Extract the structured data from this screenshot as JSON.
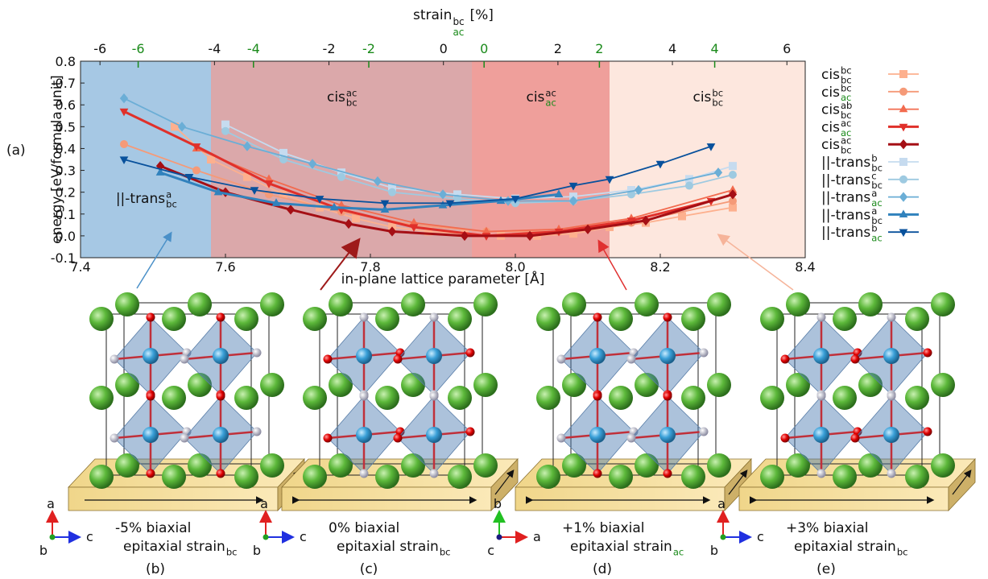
{
  "chart_data": {
    "type": "line",
    "panel_label": "(a)",
    "xlabel": "in-plane lattice parameter [Å]",
    "ylabel": "energy [eV/formula unit]",
    "xlim": [
      7.4,
      8.4
    ],
    "xticks": [
      7.4,
      7.6,
      7.8,
      {
        "value": 8.0,
        "label": "8.0"
      },
      8.2,
      8.4
    ],
    "ylim": [
      -0.1,
      0.8
    ],
    "yticks": [
      -0.1,
      {
        "value": 0,
        "label": "0.0"
      },
      0.1,
      0.2,
      0.3,
      0.4,
      0.5,
      0.6,
      0.7,
      0.8
    ],
    "x2label": "strain",
    "x2label_sub": "bc",
    "x2label_unit": "[%]",
    "x2lim": [
      -6.34,
      6.32
    ],
    "x2ticks": [
      -6,
      -4,
      -2,
      0,
      2,
      4,
      6
    ],
    "x3label_sub": "ac",
    "x3lim": [
      -7.0,
      5.57
    ],
    "x3ticks": [
      -6,
      -4,
      -2,
      0,
      2,
      4
    ],
    "x3color": "#1a8a1a",
    "regions": [
      {
        "x": [
          7.4,
          7.58
        ],
        "color": "#a6c8e4",
        "label": "||-trans",
        "sup": "a",
        "sub": "bc"
      },
      {
        "x": [
          7.58,
          7.94
        ],
        "color": "#dba8aa",
        "label": "cis",
        "sup": "ac",
        "sub": "bc"
      },
      {
        "x": [
          7.94,
          8.13
        ],
        "color": "#ef9f9b",
        "label": "cis",
        "sup": "ac",
        "sub": "ac",
        "sub_color": "#1a8a1a"
      },
      {
        "x": [
          8.13,
          8.4
        ],
        "color": "#fde7de",
        "label": "cis",
        "sup": "bc",
        "sub": "bc"
      }
    ],
    "series": [
      {
        "name": "cis",
        "sup": "bc",
        "sub": "bc",
        "color": "#fdb08e",
        "marker": "square",
        "x": [
          7.53,
          7.58,
          7.63,
          7.68,
          7.73,
          7.78,
          7.83,
          7.88,
          7.93,
          7.98,
          8.03,
          8.08,
          8.13,
          8.18,
          8.23,
          8.3
        ],
        "values": [
          0.5,
          0.35,
          0.27,
          0.19,
          0.13,
          0.08,
          0.04,
          0.02,
          0.01,
          0.0,
          0.0,
          0.01,
          0.04,
          0.06,
          0.09,
          0.13
        ]
      },
      {
        "name": "cis",
        "sup": "bc",
        "sub": "ac",
        "sub_color": "#1a8a1a",
        "color": "#f59a78",
        "marker": "circle",
        "x": [
          7.46,
          7.56,
          7.66,
          7.76,
          7.86,
          7.96,
          8.06,
          8.16,
          8.3
        ],
        "values": [
          0.42,
          0.3,
          0.19,
          0.11,
          0.05,
          0.02,
          0.02,
          0.06,
          0.16
        ]
      },
      {
        "name": "cis",
        "sup": "ab",
        "sub": "bc",
        "color": "#f26b4f",
        "marker": "triangle-up",
        "x": [
          7.56,
          7.66,
          7.76,
          7.86,
          7.96,
          8.06,
          8.16,
          8.3
        ],
        "values": [
          0.4,
          0.26,
          0.14,
          0.06,
          0.02,
          0.03,
          0.08,
          0.21
        ]
      },
      {
        "name": "cis",
        "sup": "ac",
        "sub": "ac",
        "sub_color": "#1a8a1a",
        "color": "#e0302a",
        "marker": "triangle-down",
        "x": [
          7.46,
          7.56,
          7.66,
          7.76,
          7.86,
          7.96,
          8.06,
          8.16,
          8.27
        ],
        "values": [
          0.57,
          0.41,
          0.24,
          0.12,
          0.04,
          0.0,
          0.02,
          0.07,
          0.16
        ]
      },
      {
        "name": "cis",
        "sup": "ac",
        "sub": "bc",
        "color": "#a50f15",
        "marker": "diamond",
        "x": [
          7.51,
          7.6,
          7.69,
          7.77,
          7.83,
          7.93,
          8.02,
          8.1,
          8.18,
          8.3
        ],
        "values": [
          0.32,
          0.2,
          0.12,
          0.055,
          0.02,
          0.0,
          0.0,
          0.03,
          0.07,
          0.19
        ]
      },
      {
        "name": "||-trans",
        "sup": "b",
        "sub": "bc",
        "color": "#c6dbef",
        "marker": "square",
        "x": [
          7.6,
          7.68,
          7.76,
          7.83,
          7.92,
          8.0,
          8.08,
          8.16,
          8.24,
          8.3
        ],
        "values": [
          0.51,
          0.38,
          0.29,
          0.22,
          0.19,
          0.17,
          0.18,
          0.21,
          0.26,
          0.32
        ]
      },
      {
        "name": "||-trans",
        "sup": "c",
        "sub": "bc",
        "color": "#9ecae1",
        "marker": "circle",
        "x": [
          7.6,
          7.68,
          7.76,
          7.83,
          7.92,
          8.0,
          8.08,
          8.16,
          8.24,
          8.3
        ],
        "values": [
          0.48,
          0.35,
          0.27,
          0.2,
          0.17,
          0.15,
          0.16,
          0.19,
          0.23,
          0.28
        ]
      },
      {
        "name": "||-trans",
        "sup": "a",
        "sub": "ac",
        "sub_color": "#1a8a1a",
        "color": "#6baed6",
        "marker": "diamond",
        "x": [
          7.46,
          7.54,
          7.63,
          7.72,
          7.81,
          7.9,
          7.99,
          8.08,
          8.17,
          8.28
        ],
        "values": [
          0.63,
          0.5,
          0.41,
          0.33,
          0.25,
          0.19,
          0.16,
          0.16,
          0.21,
          0.29
        ]
      },
      {
        "name": "||-trans",
        "sup": "a",
        "sub": "bc",
        "color": "#3182bd",
        "marker": "triangle-up",
        "x": [
          7.51,
          7.59,
          7.67,
          7.75,
          7.82,
          7.9,
          7.98,
          8.06
        ],
        "values": [
          0.29,
          0.2,
          0.15,
          0.13,
          0.12,
          0.14,
          0.16,
          0.19
        ]
      },
      {
        "name": "||-trans",
        "sup": "b",
        "sub": "ac",
        "sub_color": "#1a8a1a",
        "color": "#08519c",
        "marker": "triangle-down",
        "x": [
          7.46,
          7.55,
          7.64,
          7.73,
          7.82,
          7.91,
          8.0,
          8.08,
          8.13,
          8.2,
          8.27
        ],
        "values": [
          0.35,
          0.27,
          0.21,
          0.17,
          0.15,
          0.15,
          0.17,
          0.23,
          0.26,
          0.33,
          0.41
        ]
      }
    ]
  },
  "panels": [
    {
      "label": "(b)",
      "line1": "-5% biaxial",
      "line2": "epitaxial strain",
      "sub": "bc",
      "up": "a",
      "dot": "b",
      "right": "c"
    },
    {
      "label": "(c)",
      "line1": "0% biaxial",
      "line2": "epitaxial strain",
      "sub": "bc",
      "up": "a",
      "dot": "b",
      "right": "c"
    },
    {
      "label": "(d)",
      "line1": "+1% biaxial",
      "line2": "epitaxial strain",
      "sub": "ac",
      "sub_color": "#1a8a1a",
      "up": "b",
      "dot": "c",
      "right": "a"
    },
    {
      "label": "(e)",
      "line1": "+3% biaxial",
      "line2": "epitaxial strain",
      "sub": "bc",
      "up": "a",
      "dot": "b",
      "right": "c"
    }
  ]
}
